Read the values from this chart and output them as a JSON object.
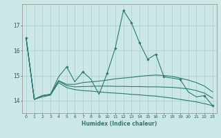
{
  "xlabel": "Humidex (Indice chaleur)",
  "bg_color": "#cce8e6",
  "grid_color": "#b0d0ce",
  "line_color": "#2a7a72",
  "xlim": [
    -0.5,
    23.5
  ],
  "ylim": [
    13.5,
    17.85
  ],
  "yticks": [
    14,
    15,
    16,
    17
  ],
  "xticks": [
    0,
    1,
    2,
    3,
    4,
    5,
    6,
    7,
    8,
    9,
    10,
    11,
    12,
    13,
    14,
    15,
    16,
    17,
    18,
    19,
    20,
    21,
    22,
    23
  ],
  "series_jagged": [
    16.5,
    14.05,
    14.2,
    14.25,
    14.95,
    15.35,
    14.75,
    15.15,
    14.85,
    14.25,
    15.1,
    16.1,
    17.6,
    17.1,
    16.3,
    15.65,
    15.85,
    14.95,
    14.9,
    14.85,
    14.35,
    14.15,
    14.2,
    13.8
  ],
  "series_smooth1": [
    16.5,
    14.05,
    14.2,
    14.25,
    14.8,
    14.65,
    14.65,
    14.72,
    14.75,
    14.78,
    14.82,
    14.87,
    14.9,
    14.93,
    14.97,
    15.0,
    15.02,
    15.0,
    14.97,
    14.9,
    14.82,
    14.72,
    14.58,
    14.35
  ],
  "series_smooth2": [
    16.5,
    14.05,
    14.2,
    14.25,
    14.78,
    14.6,
    14.55,
    14.56,
    14.57,
    14.58,
    14.58,
    14.57,
    14.57,
    14.56,
    14.56,
    14.55,
    14.55,
    14.54,
    14.53,
    14.5,
    14.47,
    14.4,
    14.3,
    14.1
  ],
  "series_smooth3": [
    16.5,
    14.05,
    14.15,
    14.22,
    14.72,
    14.52,
    14.44,
    14.4,
    14.38,
    14.35,
    14.32,
    14.3,
    14.28,
    14.25,
    14.23,
    14.2,
    14.18,
    14.14,
    14.1,
    14.05,
    14.0,
    13.95,
    13.88,
    13.8
  ],
  "jagged_markers": [
    0,
    5,
    7,
    10,
    11,
    12,
    13,
    14,
    15,
    16,
    17,
    19,
    22,
    23
  ]
}
